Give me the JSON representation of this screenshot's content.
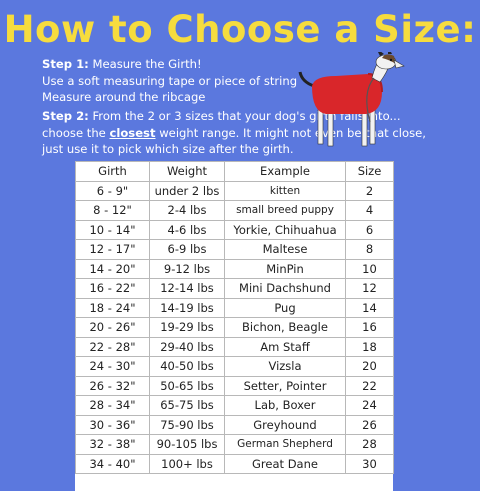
{
  "title": "How to Choose a Size:",
  "step1": {
    "label": "Step 1:",
    "heading": " Measure the Girth!",
    "line1": "Use a soft measuring tape or piece of string",
    "line2": "Measure around the ribcage"
  },
  "step2": {
    "label": "Step 2:",
    "text_before": " From the 2 or 3 sizes that your dog's girth falls into... choose the ",
    "emphasis": "closest",
    "text_after": " weight range. It might not even be that close, just use it to pick which size after the girth."
  },
  "colors": {
    "background": "#5b78de",
    "title": "#f6dc3e",
    "jacket": "#d9262a"
  },
  "table": {
    "headers": [
      "Girth",
      "Weight",
      "Example",
      "Size"
    ],
    "rows": [
      [
        "6 - 9\"",
        "under 2 lbs",
        "kitten",
        "2"
      ],
      [
        "8 - 12\"",
        "2-4 lbs",
        "small breed puppy",
        "4"
      ],
      [
        "10 - 14\"",
        "4-6 lbs",
        "Yorkie, Chihuahua",
        "6"
      ],
      [
        "12 - 17\"",
        "6-9 lbs",
        "Maltese",
        "8"
      ],
      [
        "14 - 20\"",
        "9-12 lbs",
        "MinPin",
        "10"
      ],
      [
        "16 - 22\"",
        "12-14 lbs",
        "Mini Dachshund",
        "12"
      ],
      [
        "18 - 24\"",
        "14-19 lbs",
        "Pug",
        "14"
      ],
      [
        "20 - 26\"",
        "19-29 lbs",
        "Bichon, Beagle",
        "16"
      ],
      [
        "22 - 28\"",
        "29-40 lbs",
        "Am Staff",
        "18"
      ],
      [
        "24 - 30\"",
        "40-50 lbs",
        "Vizsla",
        "20"
      ],
      [
        "26 - 32\"",
        "50-65 lbs",
        "Setter, Pointer",
        "22"
      ],
      [
        "28 - 34\"",
        "65-75 lbs",
        "Lab, Boxer",
        "24"
      ],
      [
        "30 - 36\"",
        "75-90 lbs",
        "Greyhound",
        "26"
      ],
      [
        "32 - 38\"",
        "90-105 lbs",
        "German Shepherd",
        "28"
      ],
      [
        "34 - 40\"",
        "100+ lbs",
        "Great Dane",
        "30"
      ]
    ]
  }
}
